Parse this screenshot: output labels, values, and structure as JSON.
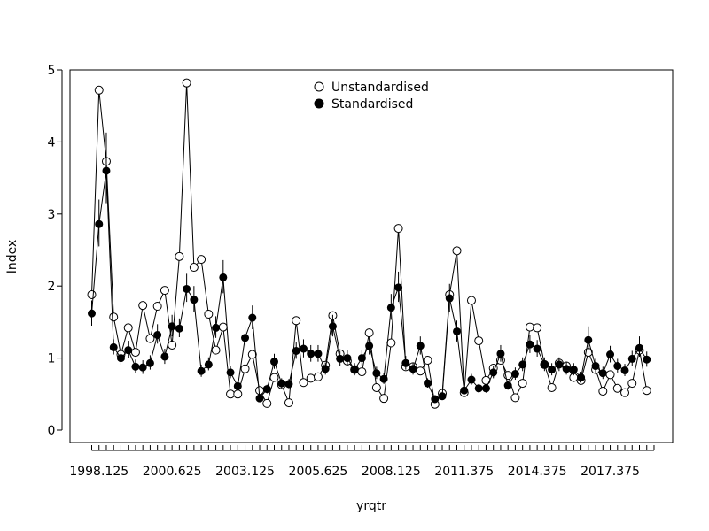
{
  "chart_data": {
    "type": "line",
    "xlabel": "yrqtr",
    "ylabel": "Index",
    "ylim": [
      0,
      5
    ],
    "y_ticks": [
      0,
      1,
      2,
      3,
      4,
      5
    ],
    "x_tick_labels": [
      "1998.125",
      "2000.625",
      "2003.125",
      "2005.625",
      "2008.125",
      "2011.375",
      "2014.375",
      "2017.375"
    ],
    "x_tick_label_positions": [
      1,
      11,
      21,
      31,
      41,
      51,
      61,
      71
    ],
    "x_tick_count": 78,
    "legend_placement": "top-center",
    "grid": false,
    "series": [
      {
        "name": "Unstandardised",
        "marker": "open-circle",
        "values": [
          1.88,
          4.72,
          3.73,
          1.57,
          1.05,
          1.42,
          1.08,
          1.73,
          1.27,
          1.72,
          1.94,
          1.18,
          2.41,
          4.82,
          2.26,
          2.37,
          1.61,
          1.11,
          1.43,
          0.5,
          0.5,
          0.85,
          1.05,
          0.55,
          0.37,
          0.73,
          0.63,
          0.38,
          1.52,
          0.66,
          0.72,
          0.74,
          0.9,
          1.59,
          1.06,
          0.96,
          0.84,
          0.81,
          1.35,
          0.59,
          0.44,
          1.21,
          2.8,
          0.88,
          0.88,
          0.82,
          0.97,
          0.36,
          0.51,
          1.88,
          2.49,
          0.52,
          1.8,
          1.24,
          0.69,
          0.86,
          0.97,
          0.76,
          0.45,
          0.65,
          1.43,
          1.42,
          0.91,
          0.59,
          0.93,
          0.89,
          0.73,
          0.69,
          1.08,
          0.84,
          0.54,
          0.77,
          0.58,
          0.52,
          0.65,
          1.11,
          0.55
        ]
      },
      {
        "name": "Standardised",
        "marker": "filled-circle",
        "values": [
          1.62,
          2.86,
          3.6,
          1.15,
          1.0,
          1.11,
          0.88,
          0.87,
          0.93,
          1.32,
          1.02,
          1.44,
          1.41,
          1.96,
          1.81,
          0.82,
          0.91,
          1.42,
          2.12,
          0.8,
          0.61,
          1.28,
          1.56,
          0.44,
          0.57,
          0.95,
          0.65,
          0.64,
          1.1,
          1.13,
          1.06,
          1.06,
          0.85,
          1.44,
          0.99,
          1.0,
          0.84,
          1.0,
          1.17,
          0.79,
          0.71,
          1.7,
          1.98,
          0.93,
          0.85,
          1.17,
          0.65,
          0.43,
          0.47,
          1.83,
          1.37,
          0.55,
          0.7,
          0.58,
          0.58,
          0.8,
          1.06,
          0.62,
          0.78,
          0.91,
          1.19,
          1.13,
          0.91,
          0.84,
          0.91,
          0.85,
          0.84,
          0.73,
          1.25,
          0.89,
          0.79,
          1.05,
          0.89,
          0.83,
          0.99,
          1.14,
          0.98
        ],
        "ci_low": [
          1.45,
          2.55,
          3.15,
          1.05,
          0.91,
          1.0,
          0.79,
          0.78,
          0.84,
          1.2,
          0.92,
          1.3,
          1.29,
          1.78,
          1.64,
          0.74,
          0.83,
          1.28,
          1.9,
          0.72,
          0.55,
          1.16,
          1.4,
          0.39,
          0.51,
          0.85,
          0.58,
          0.58,
          0.99,
          1.01,
          0.95,
          0.95,
          0.77,
          1.3,
          0.89,
          0.9,
          0.76,
          0.9,
          1.05,
          0.71,
          0.64,
          1.53,
          1.78,
          0.84,
          0.77,
          1.05,
          0.59,
          0.39,
          0.42,
          1.64,
          1.23,
          0.5,
          0.63,
          0.52,
          0.52,
          0.72,
          0.95,
          0.56,
          0.7,
          0.82,
          1.07,
          1.02,
          0.82,
          0.76,
          0.82,
          0.77,
          0.76,
          0.66,
          1.12,
          0.8,
          0.71,
          0.94,
          0.8,
          0.75,
          0.89,
          1.02,
          0.88
        ],
        "ci_high": [
          1.8,
          3.2,
          4.13,
          1.26,
          1.09,
          1.24,
          0.98,
          0.97,
          1.04,
          1.47,
          1.13,
          1.6,
          1.55,
          2.17,
          2.0,
          0.91,
          1.01,
          1.58,
          2.36,
          0.89,
          0.68,
          1.42,
          1.73,
          0.49,
          0.63,
          1.06,
          0.72,
          0.71,
          1.22,
          1.26,
          1.18,
          1.18,
          0.94,
          1.6,
          1.1,
          1.11,
          0.93,
          1.11,
          1.3,
          0.88,
          0.79,
          1.89,
          2.2,
          1.03,
          0.94,
          1.3,
          0.72,
          0.48,
          0.53,
          2.03,
          1.52,
          0.61,
          0.78,
          0.64,
          0.64,
          0.89,
          1.18,
          0.69,
          0.87,
          1.01,
          1.32,
          1.25,
          1.01,
          0.93,
          1.01,
          0.94,
          0.93,
          0.81,
          1.44,
          0.99,
          0.88,
          1.17,
          0.99,
          0.92,
          1.1,
          1.3,
          1.09
        ]
      }
    ]
  }
}
